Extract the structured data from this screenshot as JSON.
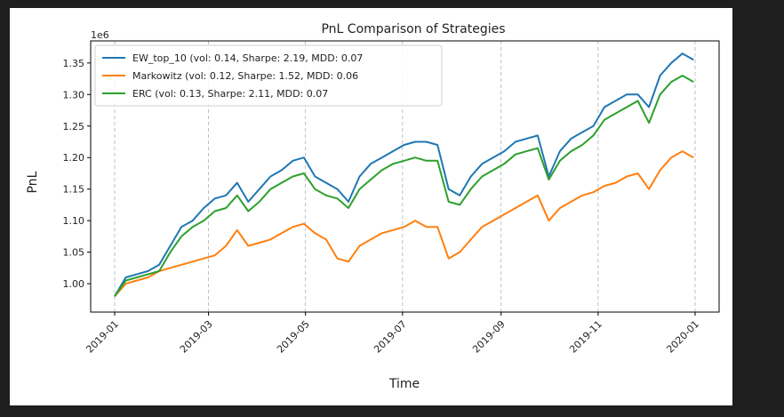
{
  "colors": {
    "page_background": "#1e1e1e",
    "figure_background": "#ffffff",
    "gridline": "#b0b0b0"
  },
  "chart_data": {
    "type": "line",
    "title": "PnL Comparison of Strategies",
    "xlabel": "Time",
    "ylabel": "PnL",
    "y_offset_label": "1e6",
    "y_scale": 1000000,
    "xlim": [
      "2019-01-01",
      "2020-01-01"
    ],
    "ylim": [
      0.955,
      1.385
    ],
    "x_ticks": [
      "2019-01",
      "2019-03",
      "2019-05",
      "2019-07",
      "2019-09",
      "2019-11",
      "2020-01"
    ],
    "y_ticks": [
      "1.00",
      "1.05",
      "1.10",
      "1.15",
      "1.20",
      "1.25",
      "1.30",
      "1.35"
    ],
    "x_grid": true,
    "y_grid": false,
    "legend_position": "upper-left",
    "x": [
      "2019-01-01",
      "2019-01-08",
      "2019-01-15",
      "2019-01-22",
      "2019-01-29",
      "2019-02-05",
      "2019-02-12",
      "2019-02-19",
      "2019-02-26",
      "2019-03-05",
      "2019-03-12",
      "2019-03-19",
      "2019-03-26",
      "2019-04-02",
      "2019-04-09",
      "2019-04-16",
      "2019-04-23",
      "2019-04-30",
      "2019-05-07",
      "2019-05-14",
      "2019-05-21",
      "2019-05-28",
      "2019-06-04",
      "2019-06-11",
      "2019-06-18",
      "2019-06-25",
      "2019-07-02",
      "2019-07-09",
      "2019-07-16",
      "2019-07-23",
      "2019-07-30",
      "2019-08-06",
      "2019-08-13",
      "2019-08-20",
      "2019-08-27",
      "2019-09-03",
      "2019-09-10",
      "2019-09-17",
      "2019-09-24",
      "2019-10-01",
      "2019-10-08",
      "2019-10-15",
      "2019-10-22",
      "2019-10-29",
      "2019-11-05",
      "2019-11-12",
      "2019-11-19",
      "2019-11-26",
      "2019-12-03",
      "2019-12-10",
      "2019-12-17",
      "2019-12-24",
      "2019-12-31"
    ],
    "series": [
      {
        "name": "EW_top_10 (vol: 0.14, Sharpe: 2.19, MDD: 0.07",
        "color": "#1f77b4",
        "values": [
          0.98,
          1.01,
          1.015,
          1.02,
          1.03,
          1.06,
          1.09,
          1.1,
          1.12,
          1.135,
          1.14,
          1.16,
          1.13,
          1.15,
          1.17,
          1.18,
          1.195,
          1.2,
          1.17,
          1.16,
          1.15,
          1.13,
          1.17,
          1.19,
          1.2,
          1.21,
          1.22,
          1.225,
          1.225,
          1.22,
          1.15,
          1.14,
          1.17,
          1.19,
          1.2,
          1.21,
          1.225,
          1.23,
          1.235,
          1.17,
          1.21,
          1.23,
          1.24,
          1.25,
          1.28,
          1.29,
          1.3,
          1.3,
          1.28,
          1.33,
          1.35,
          1.365,
          1.355
        ]
      },
      {
        "name": "Markowitz (vol: 0.12, Sharpe: 1.52, MDD: 0.06",
        "color": "#ff7f0e",
        "values": [
          0.98,
          1.0,
          1.005,
          1.01,
          1.02,
          1.025,
          1.03,
          1.035,
          1.04,
          1.045,
          1.06,
          1.085,
          1.06,
          1.065,
          1.07,
          1.08,
          1.09,
          1.095,
          1.08,
          1.07,
          1.04,
          1.035,
          1.06,
          1.07,
          1.08,
          1.085,
          1.09,
          1.1,
          1.09,
          1.09,
          1.04,
          1.05,
          1.07,
          1.09,
          1.1,
          1.11,
          1.12,
          1.13,
          1.14,
          1.1,
          1.12,
          1.13,
          1.14,
          1.145,
          1.155,
          1.16,
          1.17,
          1.175,
          1.15,
          1.18,
          1.2,
          1.21,
          1.2
        ]
      },
      {
        "name": "ERC (vol: 0.13, Sharpe: 2.11, MDD: 0.07",
        "color": "#2ca02c",
        "values": [
          0.98,
          1.005,
          1.01,
          1.015,
          1.02,
          1.05,
          1.075,
          1.09,
          1.1,
          1.115,
          1.12,
          1.14,
          1.115,
          1.13,
          1.15,
          1.16,
          1.17,
          1.175,
          1.15,
          1.14,
          1.135,
          1.12,
          1.15,
          1.165,
          1.18,
          1.19,
          1.195,
          1.2,
          1.195,
          1.195,
          1.13,
          1.125,
          1.15,
          1.17,
          1.18,
          1.19,
          1.205,
          1.21,
          1.215,
          1.165,
          1.195,
          1.21,
          1.22,
          1.235,
          1.26,
          1.27,
          1.28,
          1.29,
          1.255,
          1.3,
          1.32,
          1.33,
          1.32
        ]
      }
    ]
  }
}
